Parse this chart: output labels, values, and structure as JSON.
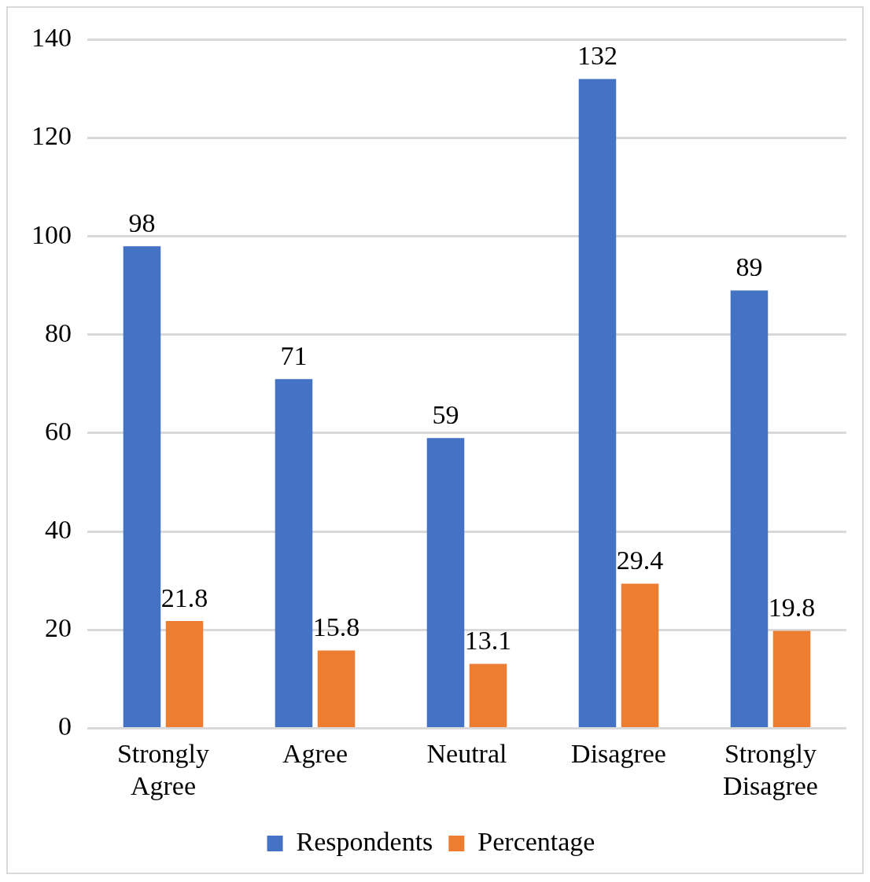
{
  "chart_data": {
    "type": "bar",
    "categories": [
      "Strongly Agree",
      "Agree",
      "Neutral",
      "Disagree",
      "Strongly Disagree"
    ],
    "series": [
      {
        "name": "Respondents",
        "color": "#4472c4",
        "values": [
          98,
          71,
          59,
          132,
          89
        ]
      },
      {
        "name": "Percentage",
        "color": "#ed7d31",
        "values": [
          21.8,
          15.8,
          13.1,
          29.4,
          19.8
        ]
      }
    ],
    "ylim": [
      0,
      140
    ],
    "yticks": [
      0,
      20,
      40,
      60,
      80,
      100,
      120,
      140
    ],
    "grid": "y",
    "legend": "bottom",
    "data_labels": true
  }
}
